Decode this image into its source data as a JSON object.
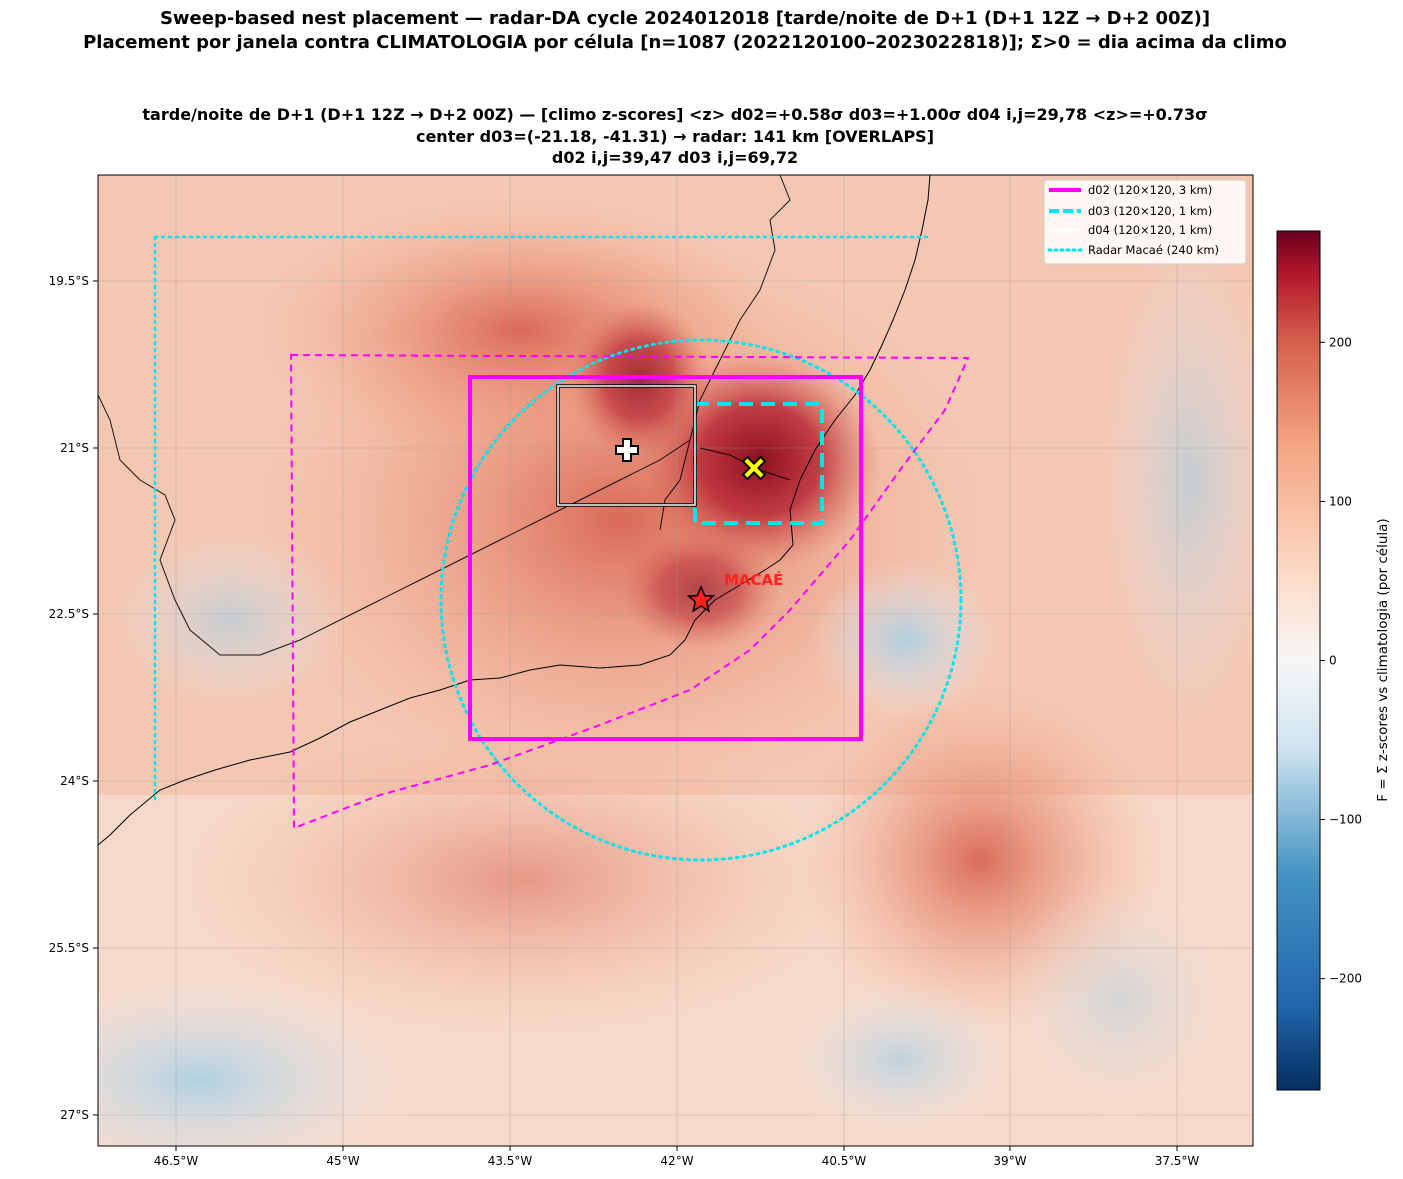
{
  "title": {
    "line1": "Sweep-based nest placement — radar-DA cycle 2024012018  [tarde/noite de D+1 (D+1 12Z → D+2 00Z)]",
    "line2": "Placement por janela contra CLIMATOLOGIA por célula [n=1087  (2022120100–2023022818)]; Σ>0 = dia acima da climo"
  },
  "subtitle": {
    "line1": "tarde/noite de D+1 (D+1 12Z → D+2 00Z)   —   [climo z-scores]   <z> d02=+0.58σ   d03=+1.00σ   d04 i,j=29,78  <z>=+0.73σ",
    "line2": "center d03=(-21.18, -41.31)   → radar: 141 km  [OVERLAPS]",
    "line3": "d02 i,j=39,47    d03 i,j=69,72"
  },
  "map": {
    "lon_ticks": [
      "46.5°W",
      "45°W",
      "43.5°W",
      "42°W",
      "40.5°W",
      "39°W",
      "37.5°W"
    ],
    "lat_ticks": [
      "19.5°S",
      "21°S",
      "22.5°S",
      "24°S",
      "25.5°S",
      "27°S"
    ],
    "radar_label": "MACAÉ",
    "radar_center_deg": [
      -41.78,
      -22.38
    ],
    "radar_range_km": 240,
    "d02_box_deg": {
      "lon": [
        -43.85,
        -40.33
      ],
      "lat": [
        -23.86,
        -20.61
      ]
    },
    "d03_box_deg": {
      "lon": [
        -41.82,
        -40.68
      ],
      "lat": [
        -21.85,
        -20.84
      ]
    },
    "d04_box_deg": {
      "lon": [
        -43.05,
        -41.8
      ],
      "lat": [
        -21.52,
        -20.41
      ]
    },
    "d03_center_deg": [
      -41.31,
      -21.18
    ],
    "d04_center_deg": [
      -42.23,
      -21.02
    ]
  },
  "legend": {
    "items": [
      {
        "label": "d02 (120×120, 3 km)",
        "color": "#ff00ff",
        "style": "solid"
      },
      {
        "label": "d03 (120×120, 1 km)",
        "color": "#00e5ee",
        "style": "dashed"
      },
      {
        "label": "d04 (120×120, 1 km)",
        "color": "#ffffff",
        "style": "solid"
      },
      {
        "label": "Radar Macaé (240 km)",
        "color": "#00e5ee",
        "style": "dotted"
      }
    ]
  },
  "colorbar": {
    "label": "F = Σ z-scores vs climatologia (por célula)",
    "range": [
      -270,
      270
    ],
    "ticks": [
      "200",
      "100",
      "0",
      "−100",
      "−200"
    ],
    "tick_values": [
      200,
      100,
      0,
      -100,
      -200
    ],
    "colormap": "RdBu_r"
  },
  "colors": {
    "d02": "#ff00ff",
    "d03": "#00e5ee",
    "radar": "#00e5ee",
    "radar_marker": "#ff2020",
    "d03_marker": "#ffff00"
  }
}
